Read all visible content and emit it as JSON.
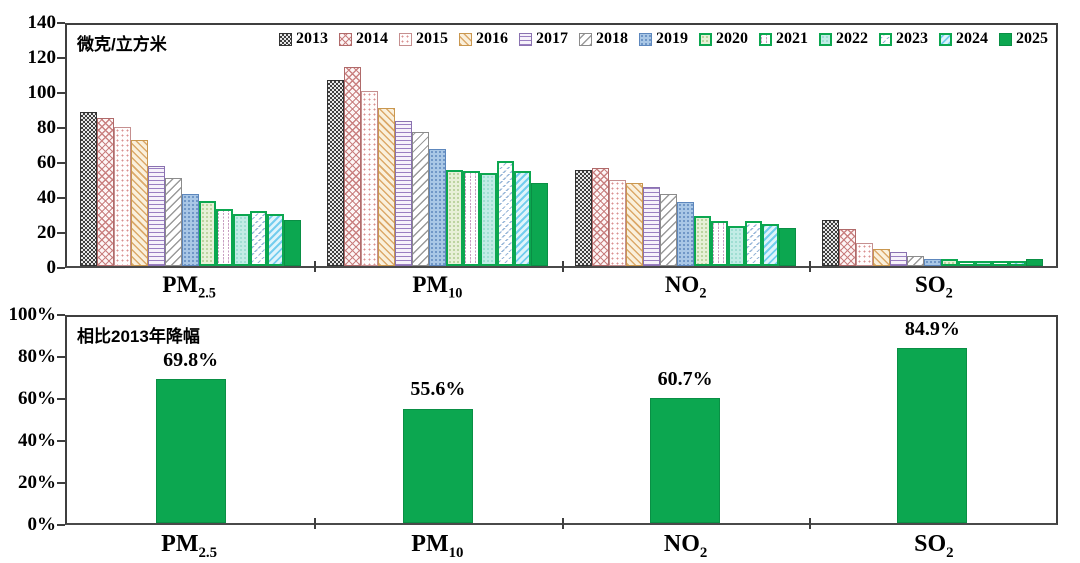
{
  "page": {
    "background": "#ffffff"
  },
  "colors": {
    "accent_green": "#0ca750",
    "axis": "#3f3f3f",
    "text": "#000000"
  },
  "chart_data": [
    {
      "type": "bar",
      "panel": "top",
      "unit_label": "微克/立方米",
      "ylim": [
        0,
        140
      ],
      "ytick_step": 20,
      "ytick_labels": [
        "0",
        "20",
        "40",
        "60",
        "80",
        "100",
        "120",
        "140"
      ],
      "grid": false,
      "legend_position": "top-inside",
      "categories": [
        {
          "main": "PM",
          "sub": "2.5"
        },
        {
          "main": "PM",
          "sub": "10"
        },
        {
          "main": "NO",
          "sub": "2"
        },
        {
          "main": "SO",
          "sub": "2"
        }
      ],
      "series": [
        {
          "name": "2013",
          "values": [
            89.5,
            108.1,
            56,
            26.5
          ]
        },
        {
          "name": "2014",
          "values": [
            85.9,
            115.8,
            56.7,
            21.8
          ]
        },
        {
          "name": "2015",
          "values": [
            80.6,
            101.5,
            50,
            13.5
          ]
        },
        {
          "name": "2016",
          "values": [
            73,
            92,
            48,
            10
          ]
        },
        {
          "name": "2017",
          "values": [
            58,
            84,
            46,
            8
          ]
        },
        {
          "name": "2018",
          "values": [
            51,
            78,
            42,
            6
          ]
        },
        {
          "name": "2019",
          "values": [
            42,
            68,
            37,
            4
          ]
        },
        {
          "name": "2020",
          "values": [
            38,
            56,
            29,
            4
          ]
        },
        {
          "name": "2021",
          "values": [
            33,
            55,
            26,
            3
          ]
        },
        {
          "name": "2022",
          "values": [
            30,
            54,
            23,
            3
          ]
        },
        {
          "name": "2023",
          "values": [
            32,
            61,
            26,
            3
          ]
        },
        {
          "name": "2024",
          "values": [
            30.5,
            55,
            24.5,
            3
          ]
        },
        {
          "name": "2025",
          "values": [
            27,
            48,
            22,
            4
          ]
        }
      ]
    },
    {
      "type": "bar",
      "panel": "bottom",
      "title": "相比2013年降幅",
      "ylim": [
        0,
        100
      ],
      "ytick_step": 20,
      "ytick_labels": [
        "0%",
        "20%",
        "40%",
        "60%",
        "80%",
        "100%"
      ],
      "grid": false,
      "categories": [
        {
          "main": "PM",
          "sub": "2.5"
        },
        {
          "main": "PM",
          "sub": "10"
        },
        {
          "main": "NO",
          "sub": "2"
        },
        {
          "main": "SO",
          "sub": "2"
        }
      ],
      "values": [
        69.8,
        55.6,
        60.7,
        84.9
      ],
      "value_labels": [
        "69.8%",
        "55.6%",
        "60.7%",
        "84.9%"
      ]
    }
  ]
}
